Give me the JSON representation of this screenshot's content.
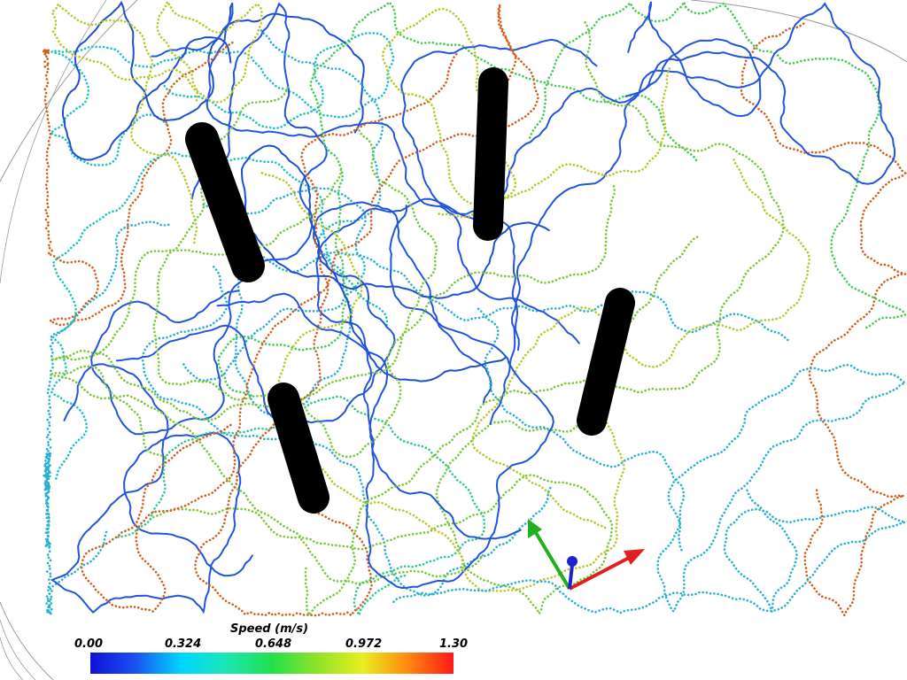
{
  "colorbar": {
    "title": "Speed (m/s)",
    "ticks": [
      "0.00",
      "0.324",
      "0.648",
      "0.972",
      "1.30"
    ],
    "range": [
      0.0,
      1.3
    ],
    "colormap": [
      "#1010d8",
      "#1a4ff0",
      "#00d6ff",
      "#19e7b8",
      "#22e04a",
      "#8ce228",
      "#e8ef1f",
      "#ff8c10",
      "#ff1818"
    ]
  },
  "scene": {
    "background": "#ffffff",
    "cylinder_color": "#000000",
    "cylinder_count": 4,
    "axes": {
      "x_color": "#e02020",
      "y_color": "#20b020",
      "z_color": "#2020d0"
    },
    "trajectory_colors": [
      "#22c0c0",
      "#2ab0d0",
      "#30c890",
      "#44cc55",
      "#79c83a",
      "#1e4fd0",
      "#2255dd",
      "#b8c828",
      "#d06020"
    ]
  }
}
